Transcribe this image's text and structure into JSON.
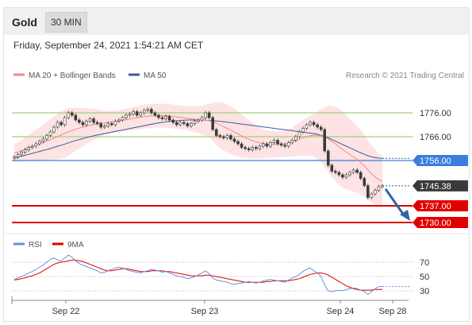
{
  "header": {
    "title": "Gold",
    "timeframe": "30 MIN",
    "date": "Friday, September 24, 2021 1:54:21 AM CET"
  },
  "legend": {
    "ma20": "MA 20 + Bollinger Bands",
    "ma50": "MA 50",
    "credit": "Research © 2021 Trading Central",
    "rsi": "RSI",
    "ma9": "9MA"
  },
  "colors": {
    "ma20": "#f08a8a",
    "ma50": "#3b5b9a",
    "bollinger": "#fde3e3",
    "resistance": "#a3cf7a",
    "pivot": "#3b7de0",
    "support": "#e00000",
    "candle": "#3a3a3a",
    "rsi": "#6a8fe0",
    "rsi_ma": "#e00000",
    "arrow": "#2e65a8"
  },
  "chart_data": [
    {
      "type": "line",
      "title": "",
      "x_labels": [
        "Sep 22",
        "Sep 23",
        "Sep 24",
        "Sep 28"
      ],
      "ylim": [
        1726,
        1788
      ],
      "levels": [
        {
          "label": "1776.00",
          "value": 1776.0,
          "kind": "resistance"
        },
        {
          "label": "1766.00",
          "value": 1766.0,
          "kind": "resistance"
        },
        {
          "label": "1756.00",
          "value": 1756.0,
          "kind": "pivot"
        },
        {
          "label": "1745.38",
          "value": 1745.38,
          "kind": "last"
        },
        {
          "label": "1737.00",
          "value": 1737.0,
          "kind": "support"
        },
        {
          "label": "1730.00",
          "value": 1730.0,
          "kind": "support"
        }
      ],
      "close": [
        1757.5,
        1758.5,
        1759.5,
        1760.5,
        1761.5,
        1762.0,
        1763.0,
        1764.0,
        1765.0,
        1766.5,
        1768.0,
        1770.0,
        1772.0,
        1771.0,
        1774.0,
        1776.0,
        1775.0,
        1773.0,
        1772.0,
        1771.0,
        1772.5,
        1773.5,
        1772.0,
        1771.5,
        1770.0,
        1770.5,
        1771.5,
        1771.0,
        1772.5,
        1773.0,
        1774.0,
        1775.0,
        1775.5,
        1776.5,
        1775.0,
        1776.0,
        1777.0,
        1777.5,
        1776.0,
        1775.0,
        1774.0,
        1773.5,
        1774.5,
        1773.0,
        1772.0,
        1771.0,
        1772.0,
        1771.5,
        1770.5,
        1771.5,
        1772.5,
        1773.0,
        1774.0,
        1776.0,
        1774.0,
        1769.0,
        1766.5,
        1766.0,
        1765.5,
        1766.5,
        1765.0,
        1764.0,
        1763.0,
        1761.5,
        1761.0,
        1760.5,
        1761.5,
        1761.0,
        1762.0,
        1763.0,
        1762.0,
        1763.5,
        1764.5,
        1763.0,
        1762.5,
        1762.0,
        1763.5,
        1764.5,
        1766.0,
        1768.0,
        1769.5,
        1771.0,
        1772.0,
        1771.0,
        1770.0,
        1769.0,
        1760.0,
        1754.0,
        1751.5,
        1751.0,
        1750.0,
        1749.0,
        1750.0,
        1751.0,
        1752.0,
        1751.0,
        1748.5,
        1745.5,
        1740.5,
        1742.0,
        1743.5,
        1745.0,
        1745.4
      ],
      "ma20": [
        1759.0,
        1759.6,
        1760.1,
        1760.7,
        1761.3,
        1761.8,
        1762.4,
        1763.0,
        1763.6,
        1764.2,
        1764.8,
        1765.4,
        1766.1,
        1766.7,
        1767.3,
        1768.0,
        1768.6,
        1769.1,
        1769.6,
        1770.0,
        1770.4,
        1770.8,
        1771.1,
        1771.4,
        1771.6,
        1771.8,
        1772.0,
        1772.2,
        1772.4,
        1772.6,
        1772.9,
        1773.1,
        1773.4,
        1773.7,
        1773.9,
        1774.2,
        1774.4,
        1774.6,
        1774.7,
        1774.8,
        1774.8,
        1774.8,
        1774.8,
        1774.7,
        1774.5,
        1774.3,
        1774.1,
        1773.9,
        1773.7,
        1773.5,
        1773.3,
        1773.1,
        1773.0,
        1772.9,
        1772.7,
        1772.2,
        1771.6,
        1770.9,
        1770.2,
        1769.5,
        1768.7,
        1767.9,
        1767.1,
        1766.3,
        1765.6,
        1764.9,
        1764.3,
        1763.8,
        1763.4,
        1763.1,
        1762.9,
        1762.8,
        1762.8,
        1762.8,
        1762.9,
        1763.1,
        1763.4,
        1763.8,
        1764.3,
        1764.9,
        1765.5,
        1766.0,
        1766.4,
        1766.6,
        1766.6,
        1766.4,
        1765.9,
        1765.1,
        1764.1,
        1763.0,
        1761.8,
        1760.6,
        1759.5,
        1758.5,
        1757.5,
        1756.4,
        1755.2,
        1753.8,
        1752.0,
        1750.5,
        1749.1,
        1748.0,
        1747.2
      ],
      "ma50": [
        1757.0,
        1757.4,
        1757.8,
        1758.2,
        1758.6,
        1759.0,
        1759.4,
        1759.8,
        1760.2,
        1760.6,
        1761.0,
        1761.5,
        1762.0,
        1762.4,
        1762.9,
        1763.4,
        1763.9,
        1764.4,
        1764.8,
        1765.2,
        1765.6,
        1766.0,
        1766.4,
        1766.7,
        1767.0,
        1767.3,
        1767.6,
        1767.9,
        1768.2,
        1768.5,
        1768.8,
        1769.1,
        1769.4,
        1769.7,
        1770.0,
        1770.3,
        1770.6,
        1770.9,
        1771.2,
        1771.5,
        1771.8,
        1772.0,
        1772.2,
        1772.4,
        1772.6,
        1772.7,
        1772.8,
        1772.9,
        1773.0,
        1773.0,
        1773.0,
        1773.0,
        1773.0,
        1772.9,
        1772.8,
        1772.7,
        1772.6,
        1772.4,
        1772.3,
        1772.1,
        1771.9,
        1771.7,
        1771.5,
        1771.3,
        1771.1,
        1770.9,
        1770.7,
        1770.5,
        1770.3,
        1770.1,
        1769.9,
        1769.7,
        1769.5,
        1769.3,
        1769.1,
        1768.9,
        1768.7,
        1768.5,
        1768.3,
        1768.1,
        1767.9,
        1767.7,
        1767.5,
        1767.3,
        1767.0,
        1766.6,
        1766.1,
        1765.5,
        1764.8,
        1764.1,
        1763.4,
        1762.7,
        1762.0,
        1761.3,
        1760.6,
        1759.9,
        1759.2,
        1758.6,
        1758.0,
        1757.5,
        1757.2,
        1757.0,
        1756.9
      ],
      "bollinger_width": [
        4,
        4,
        4.5,
        5,
        5.5,
        6,
        6.5,
        7,
        7.5,
        8,
        8.5,
        9,
        9.5,
        10,
        10,
        10,
        9.5,
        9,
        8.5,
        8,
        7.5,
        7,
        6.5,
        6,
        5.5,
        5,
        4.8,
        4.6,
        4.5,
        4.5,
        4.5,
        4.6,
        4.7,
        4.8,
        4.9,
        5,
        5,
        5,
        5,
        5,
        5,
        5,
        5,
        5,
        5,
        5,
        5,
        5,
        5,
        5.2,
        5.4,
        5.6,
        6,
        6.5,
        7,
        8,
        9,
        9.5,
        10,
        10,
        10,
        10,
        9.5,
        9,
        8.5,
        8,
        7.5,
        7,
        6.5,
        6,
        5.8,
        5.6,
        5.5,
        5.5,
        5.5,
        5.6,
        5.8,
        6,
        6.5,
        7,
        7.5,
        8,
        8.5,
        9,
        10,
        11,
        12.5,
        14,
        15,
        15.5,
        16,
        16,
        15.5,
        15,
        14.5,
        14,
        13.5,
        13,
        12.5,
        12,
        11.5,
        11,
        10.5
      ]
    },
    {
      "type": "line",
      "title": "",
      "ylim": [
        22,
        82
      ],
      "yticks": [
        70,
        50,
        30
      ],
      "rsi": [
        46,
        48,
        50,
        52,
        55,
        57,
        60,
        63,
        66,
        70,
        74,
        76,
        73,
        72,
        76,
        80,
        77,
        72,
        68,
        66,
        64,
        62,
        60,
        58,
        55,
        56,
        58,
        60,
        62,
        63,
        62,
        60,
        58,
        57,
        56,
        55,
        57,
        58,
        60,
        59,
        58,
        56,
        57,
        55,
        53,
        51,
        50,
        49,
        47,
        48,
        50,
        52,
        55,
        58,
        54,
        48,
        45,
        44,
        43,
        42,
        40,
        39,
        40,
        41,
        42,
        43,
        42,
        41,
        42,
        44,
        45,
        46,
        45,
        44,
        43,
        42,
        45,
        48,
        50,
        53,
        57,
        60,
        62,
        58,
        55,
        50,
        38,
        30,
        29,
        30,
        31,
        30,
        32,
        33,
        34,
        33,
        31,
        29,
        25,
        29,
        33,
        36,
        36
      ],
      "rsi_ma": [
        45,
        46,
        47,
        48,
        50,
        51,
        53,
        55,
        58,
        61,
        64,
        67,
        69,
        70,
        71,
        72,
        73,
        73,
        72,
        71,
        69,
        67,
        65,
        63,
        61,
        59,
        58,
        58,
        59,
        60,
        61,
        61,
        60,
        59,
        58,
        57,
        57,
        57,
        58,
        58,
        58,
        58,
        57,
        57,
        56,
        55,
        54,
        53,
        52,
        51,
        51,
        51,
        51,
        52,
        52,
        51,
        50,
        49,
        48,
        47,
        46,
        45,
        44,
        43,
        42,
        42,
        42,
        42,
        42,
        42,
        43,
        43,
        44,
        44,
        44,
        44,
        44,
        45,
        46,
        47,
        49,
        51,
        53,
        54,
        55,
        55,
        54,
        52,
        49,
        46,
        43,
        40,
        37,
        35,
        33,
        32,
        31,
        31,
        31,
        31,
        32,
        32,
        32
      ]
    }
  ]
}
